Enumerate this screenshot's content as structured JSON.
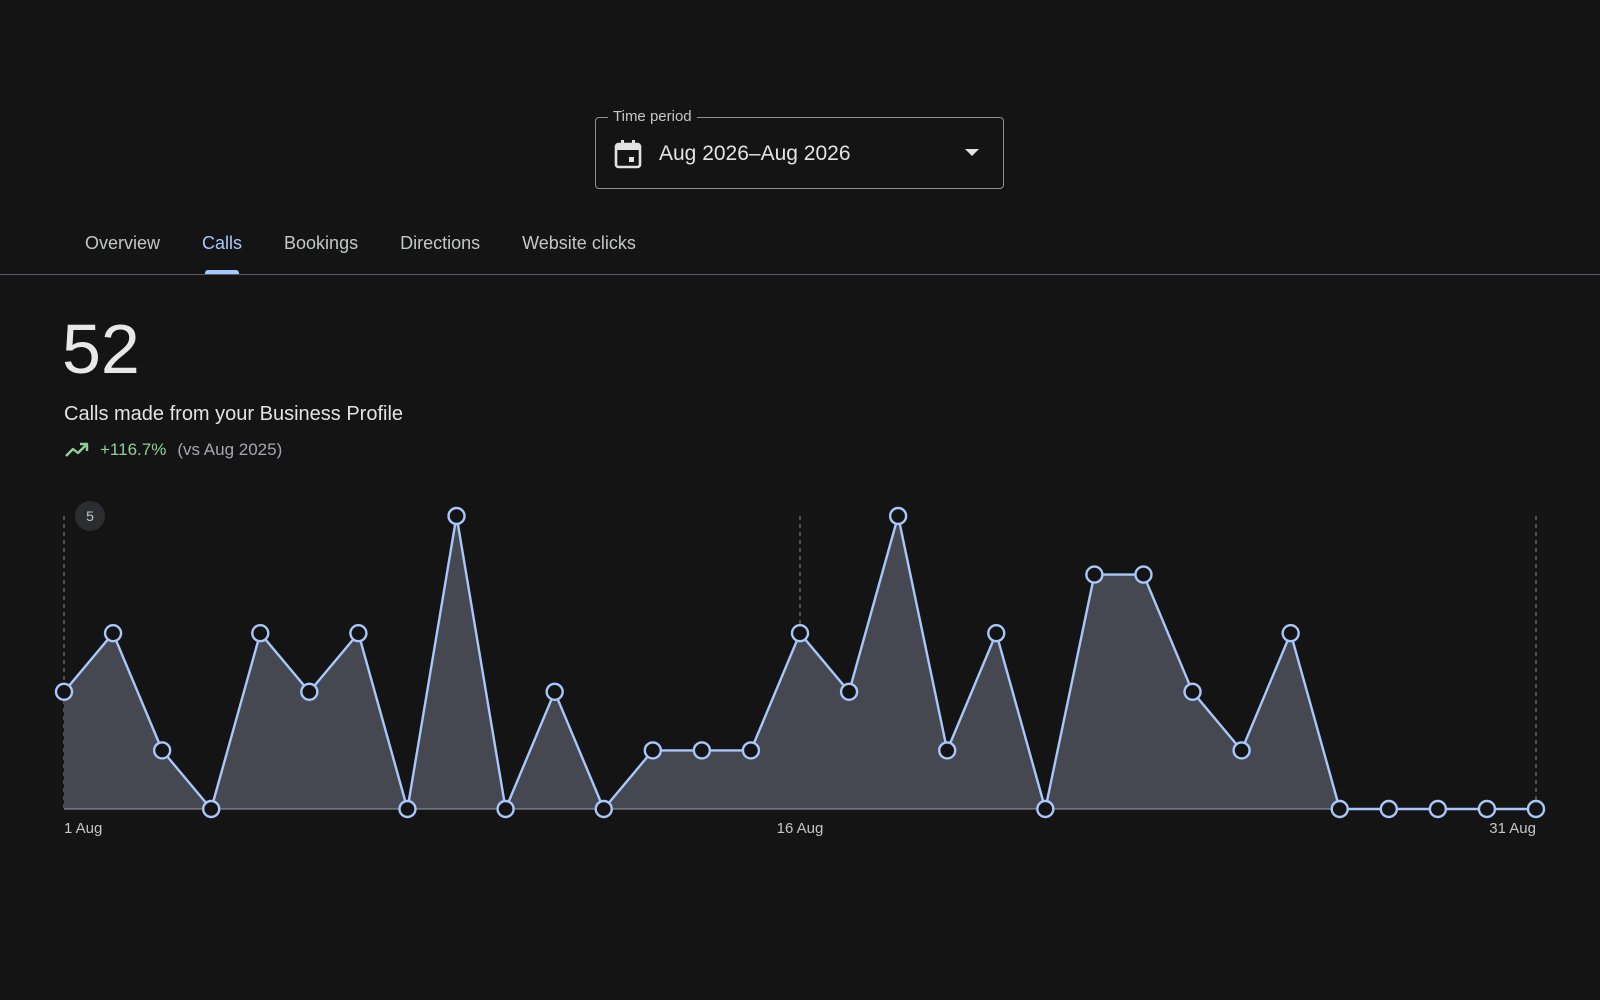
{
  "time_period": {
    "label": "Time period",
    "value": "Aug 2026–Aug 2026",
    "icon": "calendar-icon"
  },
  "tabs": [
    {
      "label": "Overview",
      "active": false
    },
    {
      "label": "Calls",
      "active": true
    },
    {
      "label": "Bookings",
      "active": false
    },
    {
      "label": "Directions",
      "active": false
    },
    {
      "label": "Website clicks",
      "active": false
    }
  ],
  "metric": {
    "value": "52",
    "label": "Calls made from your Business Profile",
    "trend_value": "+116.7%",
    "trend_compare": "(vs Aug 2025)",
    "trend_icon": "trending-up-icon"
  },
  "colors": {
    "accent": "#a8c7fa",
    "trend_positive": "#8fcf9a",
    "background": "#141415",
    "area_fill": "#454850"
  },
  "chart_data": {
    "type": "area",
    "x": [
      "1 Aug",
      "2 Aug",
      "3 Aug",
      "4 Aug",
      "5 Aug",
      "6 Aug",
      "7 Aug",
      "8 Aug",
      "9 Aug",
      "10 Aug",
      "11 Aug",
      "12 Aug",
      "13 Aug",
      "14 Aug",
      "15 Aug",
      "16 Aug",
      "17 Aug",
      "18 Aug",
      "19 Aug",
      "20 Aug",
      "21 Aug",
      "22 Aug",
      "23 Aug",
      "24 Aug",
      "25 Aug",
      "26 Aug",
      "27 Aug",
      "28 Aug",
      "29 Aug",
      "30 Aug",
      "31 Aug"
    ],
    "values": [
      2,
      3,
      1,
      0,
      3,
      2,
      3,
      0,
      5,
      0,
      2,
      0,
      1,
      1,
      1,
      3,
      2,
      5,
      1,
      3,
      0,
      4,
      4,
      2,
      1,
      3,
      0,
      0,
      0,
      0,
      0
    ],
    "ylim": [
      0,
      5
    ],
    "y_max_label": "5",
    "x_tick_labels": [
      "1 Aug",
      "16 Aug",
      "31 Aug"
    ],
    "grid": "dashed vertical lines at 1 Aug, 16 Aug, 31 Aug",
    "markers": "hollow circles"
  }
}
